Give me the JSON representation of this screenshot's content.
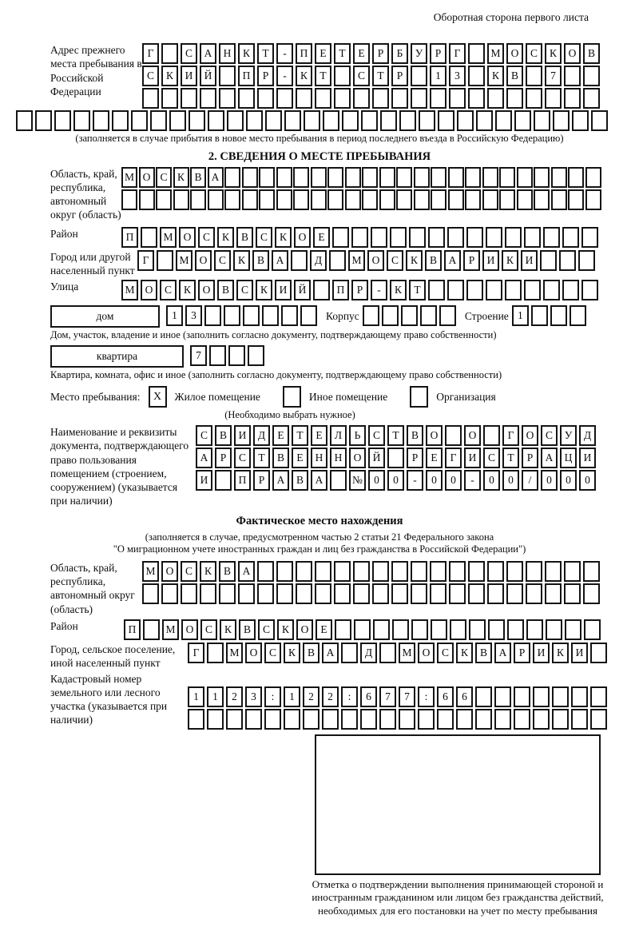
{
  "page": {
    "corner_note": "Оборотная сторона первого листа"
  },
  "prev_address": {
    "label": "Адрес прежнего места пребывания в Российской Федерации",
    "rows": [
      {
        "text": "Г САНКТ-ПЕТЕРБУРГ МОСКОВ",
        "len": 24
      },
      {
        "text": "СКИЙ ПР-КТ СТР 13 КВ 7",
        "len": 24
      },
      {
        "text": "",
        "len": 24
      }
    ],
    "overflow_row": {
      "text": "",
      "len": 31
    },
    "note": "(заполняется в случае прибытия в новое место пребывания в период последнего въезда в Российскую Федерацию)"
  },
  "section2": {
    "title": "2. СВЕДЕНИЯ О МЕСТЕ ПРЕБЫВАНИЯ",
    "region": {
      "label": "Область, край, республика, автономный округ (область)",
      "rows": [
        {
          "text": "МОСКВА",
          "len": 28
        },
        {
          "text": "",
          "len": 28
        }
      ]
    },
    "district": {
      "label": "Район",
      "row": {
        "text": "П МОСКВСКОЕ",
        "len": 25
      }
    },
    "city": {
      "label": "Город или другой населенный пункт",
      "row": {
        "text": "Г МОСКВА Д МОСКВАРИКИ",
        "len": 24
      }
    },
    "street": {
      "label": "Улица",
      "row": {
        "text": "МОСКОВСКИЙ ПР-КТ",
        "len": 25
      }
    },
    "house": {
      "box_label": "дом",
      "cells": {
        "text": "13",
        "len": 8
      },
      "korpus_label": "Корпус",
      "korpus_cells": {
        "text": "",
        "len": 5
      },
      "stroenie_label": "Строение",
      "stroenie_cells": {
        "text": "1",
        "len": 4
      },
      "note": "Дом, участок, владение и иное (заполнить согласно документу, подтверждающему право собственности)"
    },
    "apartment": {
      "box_label": "квартира",
      "cells": {
        "text": "7",
        "len": 4
      },
      "note": "Квартира, комната, офис и иное (заполнить согласно документу, подтверждающему право собственности)"
    },
    "stay_type": {
      "label": "Место пребывания:",
      "options": [
        {
          "label": "Жилое помещение",
          "value": "X"
        },
        {
          "label": "Иное помещение",
          "value": ""
        },
        {
          "label": "Организация",
          "value": ""
        }
      ],
      "note": "(Необходимо выбрать нужное)"
    },
    "document": {
      "label": "Наименование и реквизиты документа, подтверждающего право пользования помещением (строением, сооружением) (указывается при наличии)",
      "rows": [
        {
          "text": "СВИДЕТЕЛЬСТВО О ГОСУД",
          "len": 21
        },
        {
          "text": "АРСТВЕННОЙ РЕГИСТРАЦИ",
          "len": 21
        },
        {
          "text": "И ПРАВА №00-00-00/000",
          "len": 21
        }
      ]
    }
  },
  "actual_location": {
    "title": "Фактическое место нахождения",
    "note_line1": "(заполняется в случае, предусмотренном частью 2 статьи 21 Федерального закона",
    "note_line2": "\"О миграционном учете иностранных граждан и лиц без гражданства в Российской Федерации\")",
    "region": {
      "label": "Область, край, республика, автономный округ (область)",
      "rows": [
        {
          "text": "МОСКВА",
          "len": 24
        },
        {
          "text": "",
          "len": 24
        }
      ]
    },
    "district": {
      "label": "Район",
      "row": {
        "text": "П МОСКВСКОЕ",
        "len": 25
      }
    },
    "city": {
      "label": "Город, сельское поселение, иной населенный пункт",
      "row": {
        "text": "Г МОСКВА Д МОСКВАРИКИ",
        "len": 22
      }
    },
    "cadastral": {
      "label": "Кадастровый номер земельного или лесного участка (указывается при наличии)",
      "rows": [
        {
          "text": "1123:122:677:66",
          "len": 22
        },
        {
          "text": "",
          "len": 22
        }
      ]
    },
    "stamp_note": "Отметка о подтверждении выполнения принимающей стороной и иностранным гражданином или лицом без гражданства действий, необходимых для его постановки на учет по месту пребывания"
  }
}
